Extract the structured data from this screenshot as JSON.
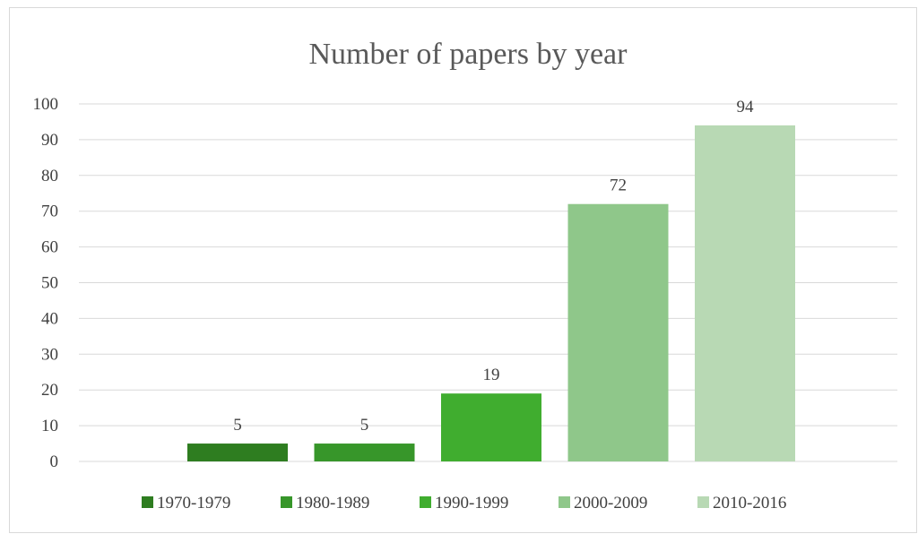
{
  "chart_data": {
    "type": "bar",
    "title": "Number of papers by year",
    "xlabel": "",
    "ylabel": "",
    "ylim": [
      0,
      100
    ],
    "yticks": [
      0,
      10,
      20,
      30,
      40,
      50,
      60,
      70,
      80,
      90,
      100
    ],
    "grid": true,
    "legend_position": "bottom",
    "series": [
      {
        "name": "1970-1979",
        "value": 5,
        "color": "#2e7d20"
      },
      {
        "name": "1980-1989",
        "value": 5,
        "color": "#37962a"
      },
      {
        "name": "1990-1999",
        "value": 19,
        "color": "#40ad2f"
      },
      {
        "name": "2000-2009",
        "value": 72,
        "color": "#8fc78a"
      },
      {
        "name": "2010-2016",
        "value": 94,
        "color": "#b8d9b4"
      }
    ]
  }
}
